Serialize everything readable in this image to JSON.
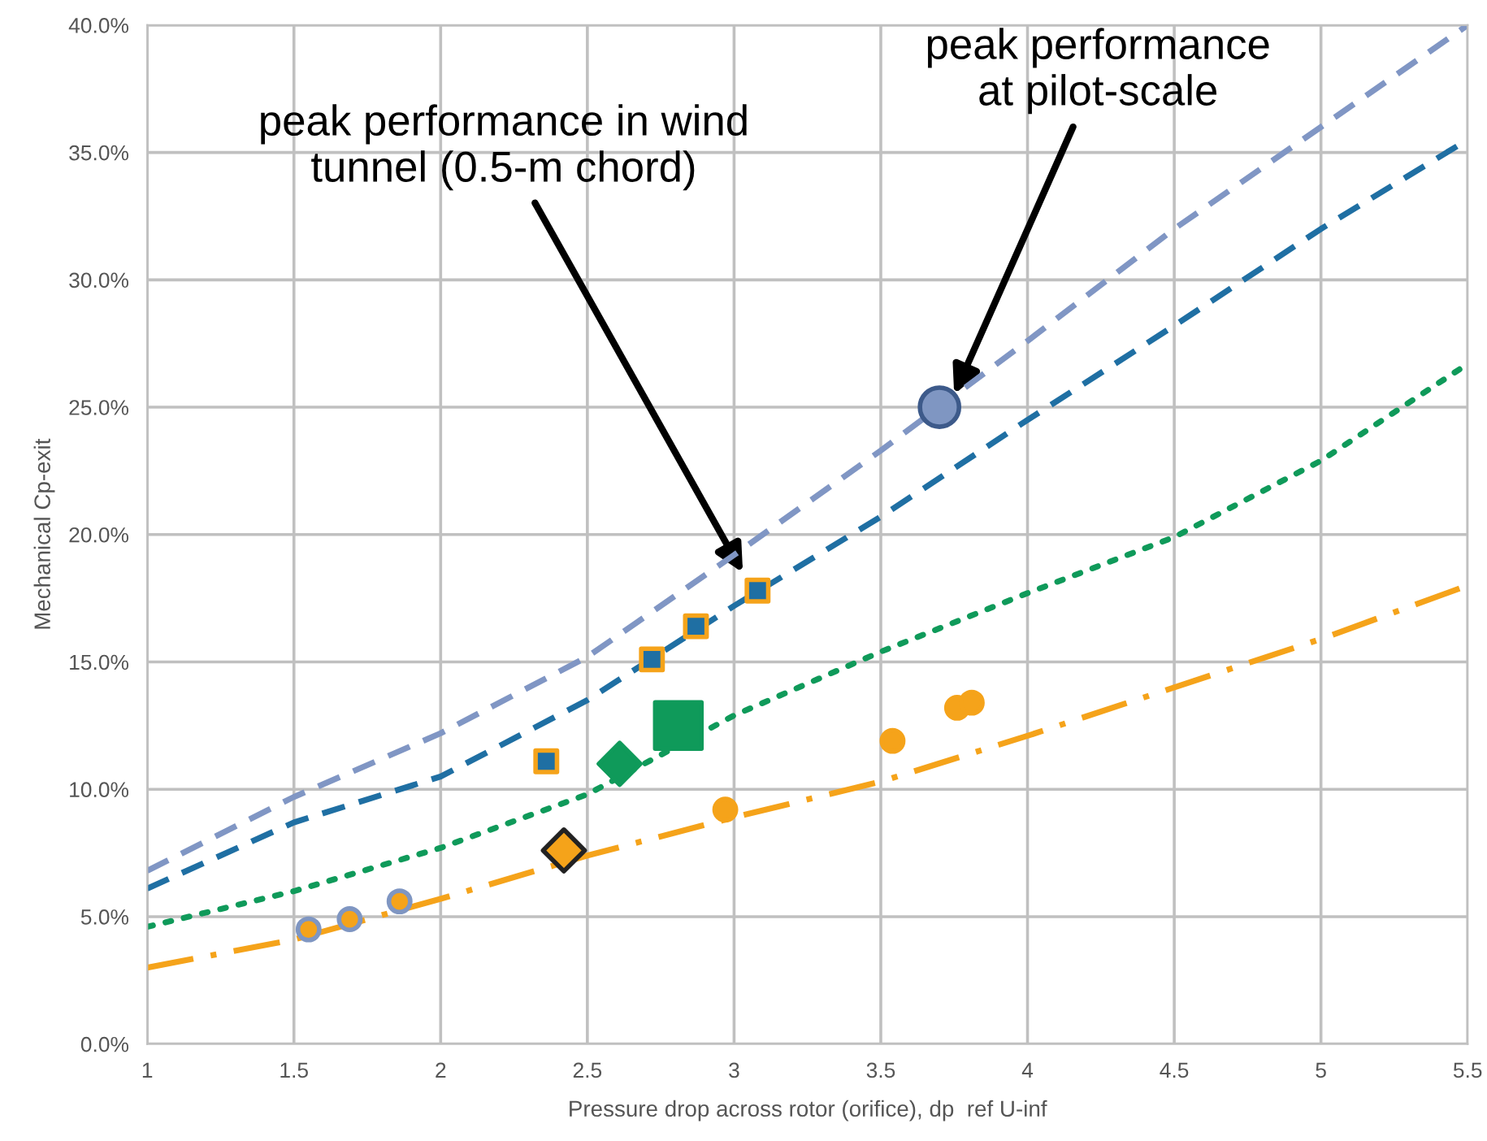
{
  "chart_data": {
    "type": "line",
    "xlabel": "Pressure drop across rotor (orifice), dp  ref U-inf",
    "ylabel": "Mechanical Cp-exit",
    "xlim": [
      1,
      5.5
    ],
    "ylim": [
      0,
      40
    ],
    "xticks": [
      1,
      1.5,
      2,
      2.5,
      3,
      3.5,
      4,
      4.5,
      5,
      5.5
    ],
    "yticks": [
      {
        "value": 0,
        "label": "0.0%"
      },
      {
        "value": 5,
        "label": "5.0%"
      },
      {
        "value": 10,
        "label": "10.0%"
      },
      {
        "value": 15,
        "label": "15.0%"
      },
      {
        "value": 20,
        "label": "20.0%"
      },
      {
        "value": 25,
        "label": "25.0%"
      },
      {
        "value": 30,
        "label": "30.0%"
      },
      {
        "value": 35,
        "label": "35.0%"
      },
      {
        "value": 40,
        "label": "40.0%"
      }
    ],
    "grid": true,
    "legend": false,
    "series": [
      {
        "color": "#8096c4",
        "line_style": "dashed",
        "marker": "none",
        "x": [
          1,
          1.5,
          2,
          2.5,
          3,
          3.5,
          4,
          4.5,
          5,
          5.5
        ],
        "values": [
          6.8,
          9.7,
          12.2,
          15.2,
          19.2,
          23.3,
          27.6,
          32,
          36,
          40
        ]
      },
      {
        "color": "#1f6fa3",
        "line_style": "dashed",
        "marker": "none",
        "x": [
          1,
          1.5,
          2,
          2.5,
          3,
          3.5,
          4,
          4.5,
          5,
          5.5
        ],
        "values": [
          6.1,
          8.7,
          10.5,
          13.5,
          17.2,
          20.7,
          24.5,
          28.2,
          32,
          35.5
        ]
      },
      {
        "color": "#0f9a5a",
        "line_style": "dotted",
        "marker": "none",
        "x": [
          1,
          1.5,
          2,
          2.5,
          3,
          3.5,
          4,
          4.5,
          5,
          5.5
        ],
        "values": [
          4.6,
          6.0,
          7.7,
          9.8,
          12.9,
          15.4,
          17.7,
          19.9,
          22.9,
          26.7
        ]
      },
      {
        "color": "#f5a31a",
        "line_style": "dashdot",
        "marker": "none",
        "x": [
          1,
          1.5,
          2,
          2.5,
          3,
          3.5,
          4,
          4.5,
          5,
          5.5
        ],
        "values": [
          3.0,
          4.1,
          5.7,
          7.4,
          8.9,
          10.3,
          12.1,
          14.0,
          15.9,
          18.0
        ]
      },
      {
        "type": "scatter",
        "color": "#f5a31a",
        "marker": "circle",
        "x": [
          1.55,
          1.69,
          1.86
        ],
        "values": [
          4.5,
          4.9,
          5.6
        ]
      },
      {
        "type": "scatter",
        "color": "#f5a31a",
        "marker": "diamond",
        "x": [
          2.42
        ],
        "values": [
          7.6
        ]
      },
      {
        "type": "scatter",
        "color": "#f5a31a",
        "marker": "circle",
        "x": [
          2.97,
          3.54,
          3.76,
          3.81
        ],
        "values": [
          9.2,
          11.9,
          13.2,
          13.4
        ]
      },
      {
        "type": "scatter",
        "color": "#1f6fa3",
        "marker": "square",
        "x": [
          2.36,
          2.72,
          2.87,
          3.08
        ],
        "values": [
          11.1,
          15.1,
          16.4,
          17.8
        ]
      },
      {
        "type": "scatter",
        "color": "#0f9a5a",
        "marker": "diamond",
        "x": [
          2.61
        ],
        "values": [
          11.0
        ]
      },
      {
        "type": "scatter",
        "color": "#0f9a5a",
        "marker": "square",
        "x": [
          2.81
        ],
        "values": [
          12.5
        ]
      },
      {
        "type": "scatter",
        "color": "#7f96c2",
        "marker": "circle",
        "x": [
          3.7
        ],
        "values": [
          25.0
        ]
      }
    ],
    "annotations": [
      {
        "text": "peak performance in wind\ntunnel (0.5-m chord)",
        "x": 3.03,
        "y": 18.5
      },
      {
        "text": "peak performance\nat pilot-scale",
        "x": 3.75,
        "y": 25.5
      }
    ]
  }
}
